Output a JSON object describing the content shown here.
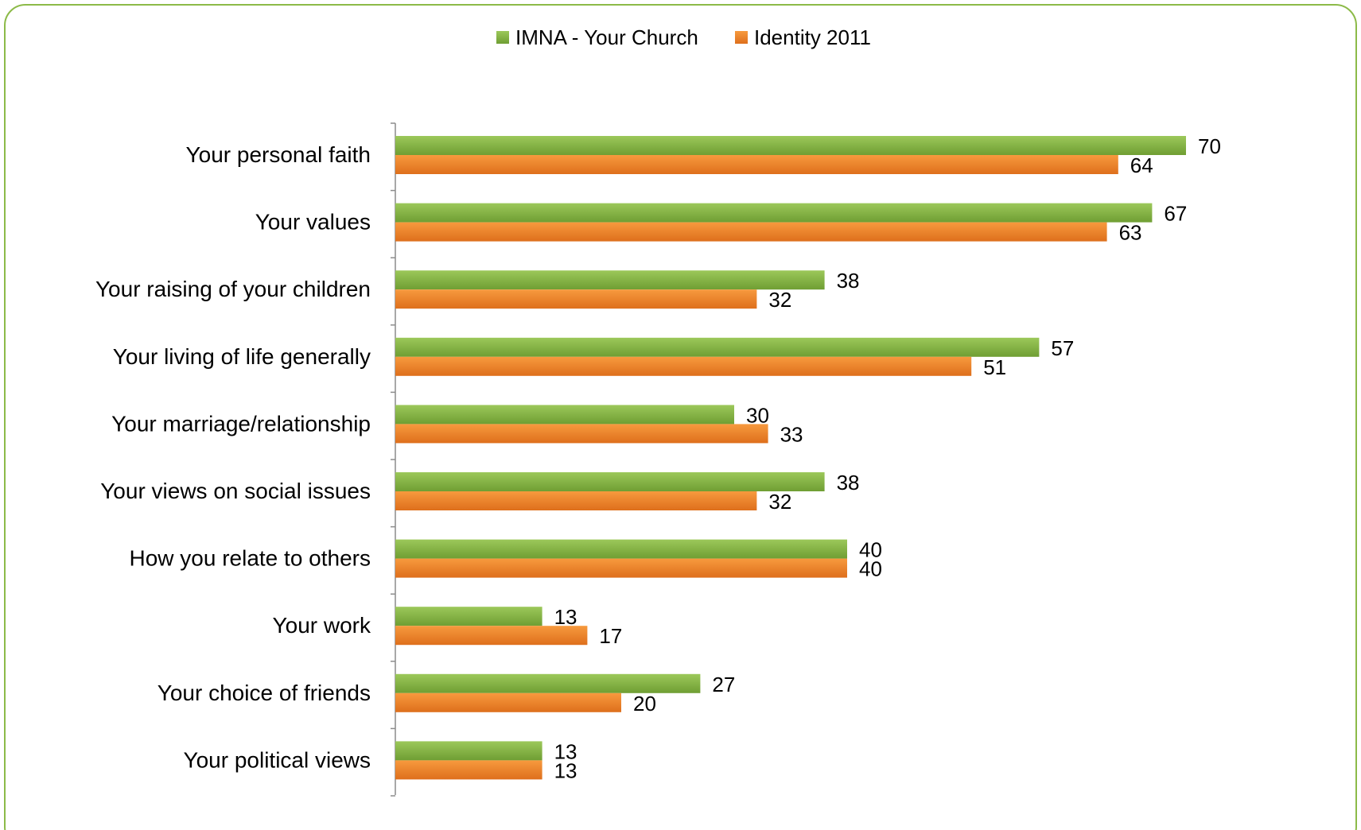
{
  "chart_data": {
    "type": "bar",
    "orientation": "horizontal",
    "categories": [
      "Your personal faith",
      "Your values",
      "Your raising of your children",
      "Your living of life generally",
      "Your marriage/relationship",
      "Your views on social issues",
      "How you relate to others",
      "Your work",
      "Your choice of friends",
      "Your political views"
    ],
    "series": [
      {
        "name": "IMNA - Your Church",
        "color": "#7fae3f",
        "values": [
          70,
          67,
          38,
          57,
          30,
          38,
          40,
          13,
          27,
          13
        ]
      },
      {
        "name": "Identity 2011",
        "color": "#ef7e22",
        "values": [
          64,
          63,
          32,
          51,
          33,
          32,
          40,
          17,
          20,
          13
        ]
      }
    ],
    "xlim": [
      0,
      80
    ],
    "grid": false,
    "legend_position": "top-center",
    "data_labels": true
  },
  "frame": {
    "border_color": "#8cba48"
  }
}
